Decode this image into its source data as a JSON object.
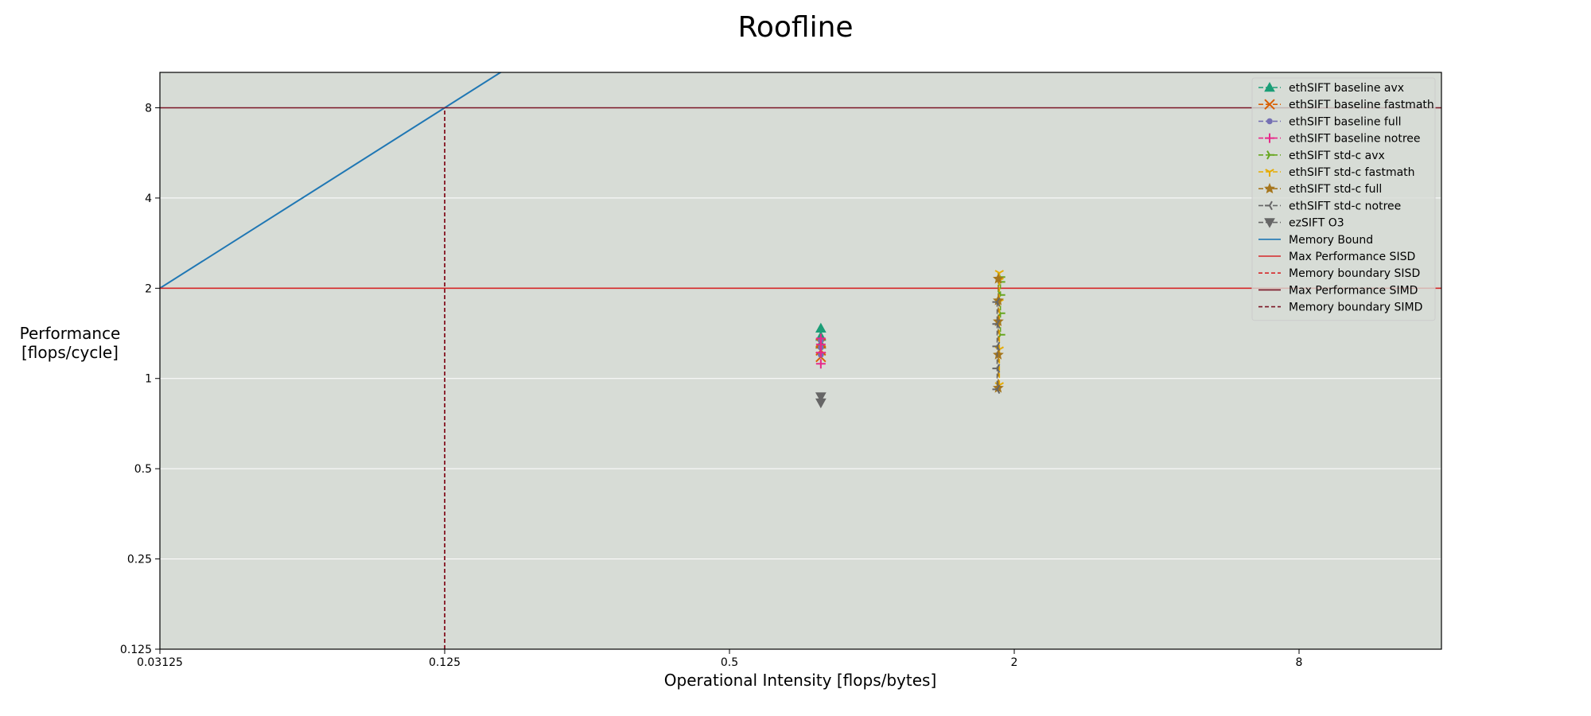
{
  "chart_data": {
    "type": "scatter",
    "title": "Roofline",
    "xlabel": "Operational Intensity [flops/bytes]",
    "ylabel_lines": [
      "Performance",
      "[flops/cycle]"
    ],
    "x_scale": "log2",
    "y_scale": "log2",
    "xlim": [
      0.03125,
      16
    ],
    "ylim": [
      0.125,
      10.5
    ],
    "x_ticks": [
      0.03125,
      0.125,
      0.5,
      2,
      8
    ],
    "x_tick_labels": [
      "0.03125",
      "0.125",
      "0.5",
      "2",
      "8"
    ],
    "y_ticks": [
      0.125,
      0.25,
      0.5,
      1,
      2,
      4,
      8
    ],
    "y_tick_labels": [
      "0.125",
      "0.25",
      "0.5",
      "1",
      "2",
      "4",
      "8"
    ],
    "grid": "horizontal",
    "background": "#d7dcd6",
    "legend_position": "top-right",
    "series": [
      {
        "name": "ethSIFT baseline avx",
        "color": "#1b9e77",
        "marker": "triangle-up",
        "style": "dashed",
        "x": [
          0.78,
          0.78,
          0.78
        ],
        "y": [
          1.47,
          1.38,
          1.3
        ]
      },
      {
        "name": "ethSIFT baseline fastmath",
        "color": "#d95f02",
        "marker": "x",
        "style": "dashed",
        "x": [
          0.78,
          0.78,
          0.78
        ],
        "y": [
          1.31,
          1.24,
          1.18
        ]
      },
      {
        "name": "ethSIFT baseline full",
        "color": "#7570b3",
        "marker": "circle",
        "style": "dashed",
        "x": [
          0.78,
          0.78,
          0.78
        ],
        "y": [
          1.34,
          1.27,
          1.2
        ]
      },
      {
        "name": "ethSIFT baseline notree",
        "color": "#e7298a",
        "marker": "plus",
        "style": "dashed",
        "x": [
          0.78,
          0.78,
          0.78,
          0.78
        ],
        "y": [
          1.36,
          1.3,
          1.22,
          1.12
        ]
      },
      {
        "name": "ethSIFT std-c avx",
        "color": "#66a61e",
        "marker": "tri-right",
        "style": "dashed",
        "x": [
          1.87,
          1.87,
          1.87,
          1.87,
          1.87
        ],
        "y": [
          2.18,
          2.1,
          1.9,
          1.65,
          1.4
        ]
      },
      {
        "name": "ethSIFT std-c fastmath",
        "color": "#e6ab02",
        "marker": "tri-down",
        "style": "dashed",
        "x": [
          1.86,
          1.86,
          1.86,
          1.86,
          1.86
        ],
        "y": [
          2.25,
          2.12,
          1.8,
          1.25,
          0.95
        ]
      },
      {
        "name": "ethSIFT std-c full",
        "color": "#a6761d",
        "marker": "star",
        "style": "dashed",
        "x": [
          1.85,
          1.85,
          1.85,
          1.85,
          1.85
        ],
        "y": [
          2.15,
          1.82,
          1.55,
          1.2,
          0.93
        ]
      },
      {
        "name": "ethSIFT std-c notree",
        "color": "#666666",
        "marker": "tri-left",
        "style": "dashed",
        "x": [
          1.84,
          1.84,
          1.84,
          1.84,
          1.84
        ],
        "y": [
          1.8,
          1.52,
          1.28,
          1.08,
          0.92
        ]
      },
      {
        "name": "ezSIFT O3",
        "color": "#666666",
        "marker": "triangle-down",
        "style": "dashed",
        "x": [
          0.78,
          0.78
        ],
        "y": [
          0.87,
          0.83
        ]
      }
    ],
    "reference_lines": [
      {
        "name": "Memory Bound",
        "color": "#1f77b4",
        "style": "solid",
        "slope": 64,
        "from_x": 0.03125
      },
      {
        "name": "Max Performance SISD",
        "color": "#d62728",
        "style": "solid",
        "y": 2
      },
      {
        "name": "Memory boundary SISD",
        "color": "#d62728",
        "style": "dashed",
        "x": 0.125
      },
      {
        "name": "Max Performance SIMD",
        "color": "#7a1424",
        "style": "solid",
        "y": 8
      },
      {
        "name": "Memory boundary SIMD",
        "color": "#7a1424",
        "style": "dashed",
        "x": 0.125
      }
    ]
  }
}
